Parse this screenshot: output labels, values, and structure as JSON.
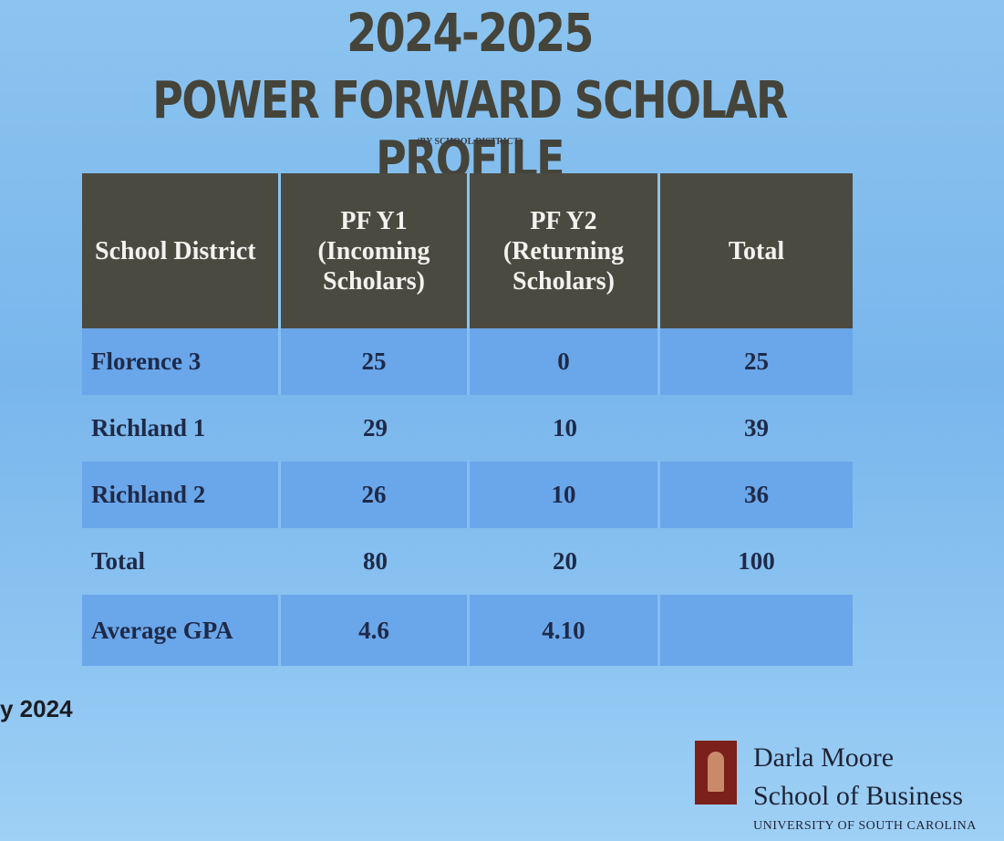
{
  "header": {
    "title_line1": "2024-2025",
    "title_line2": "POWER FORWARD SCHOLAR PROFILE",
    "subtitle": "(BY SCHOOL DISTRICT)"
  },
  "table": {
    "columns": [
      [
        "School District"
      ],
      [
        "PF Y1",
        "(Incoming",
        "Scholars)"
      ],
      [
        "PF Y2",
        "(Returning",
        "Scholars)"
      ],
      [
        "Total"
      ]
    ],
    "rows": [
      [
        "Florence 3",
        "25",
        "0",
        "25"
      ],
      [
        "Richland 1",
        "29",
        "10",
        "39"
      ],
      [
        "Richland 2",
        "26",
        "10",
        "36"
      ],
      [
        "Total",
        "80",
        "20",
        "100"
      ],
      [
        "Average GPA",
        "4.6",
        "4.10"
      ]
    ]
  },
  "footer": {
    "date": "y 2024",
    "logo_line1": "Darla Moore",
    "logo_line2": "School of Business",
    "logo_line3": "UNIVERSITY OF SOUTH CAROLINA"
  }
}
